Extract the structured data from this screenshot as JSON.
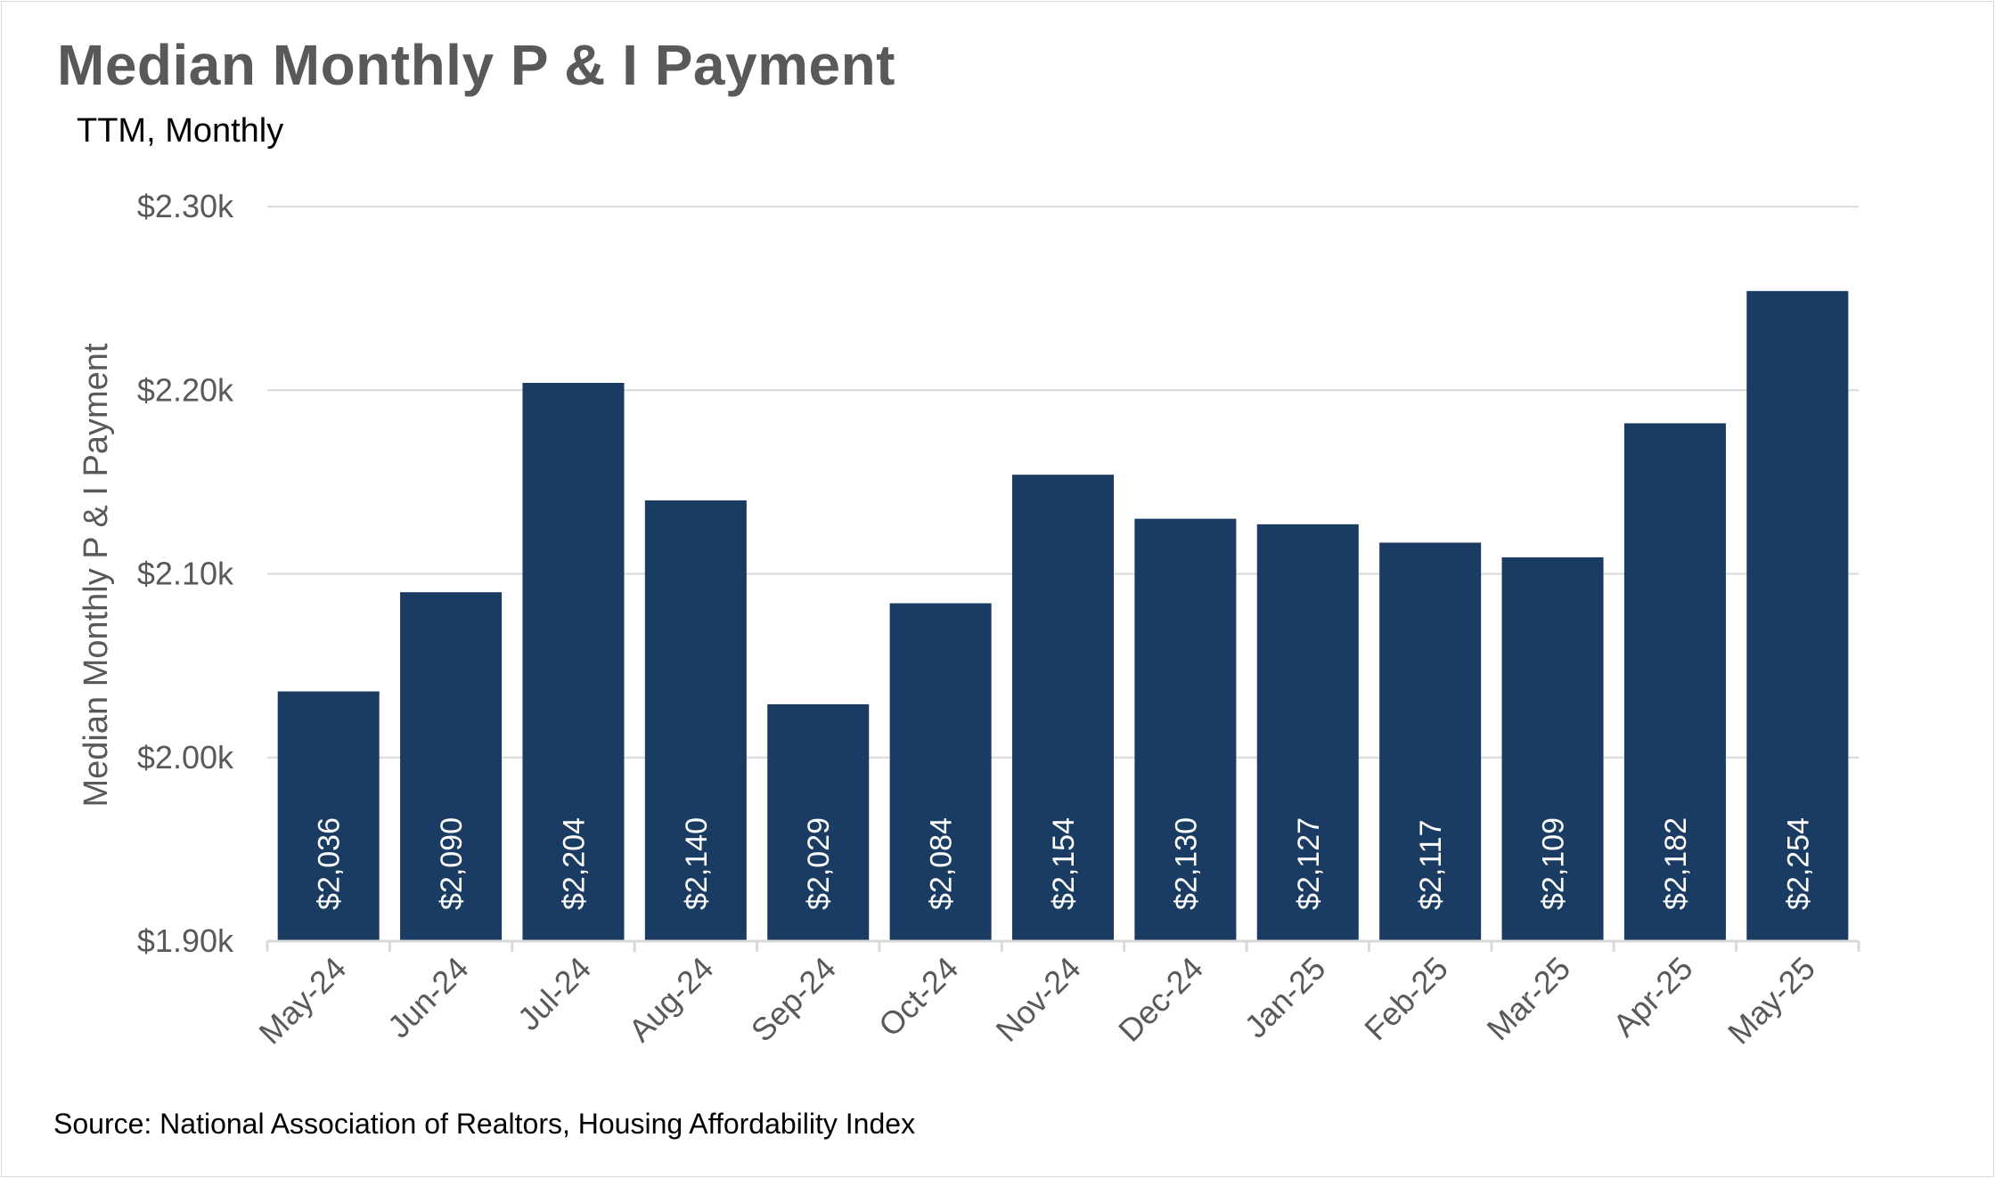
{
  "chart_data": {
    "type": "bar",
    "title": "Median Monthly P & I Payment",
    "subtitle": "TTM, Monthly",
    "ylabel": "Median Monthly P & I Payment",
    "xlabel": "",
    "categories": [
      "May-24",
      "Jun-24",
      "Jul-24",
      "Aug-24",
      "Sep-24",
      "Oct-24",
      "Nov-24",
      "Dec-24",
      "Jan-25",
      "Feb-25",
      "Mar-25",
      "Apr-25",
      "May-25"
    ],
    "values": [
      2036,
      2090,
      2204,
      2140,
      2029,
      2084,
      2154,
      2130,
      2127,
      2117,
      2109,
      2182,
      2254
    ],
    "data_labels": [
      "$2,036",
      "$2,090",
      "$2,204",
      "$2,140",
      "$2,029",
      "$2,084",
      "$2,154",
      "$2,130",
      "$2,127",
      "$2,117",
      "$2,109",
      "$2,182",
      "$2,254"
    ],
    "ylim": [
      1900,
      2300
    ],
    "yticks": [
      1900,
      2000,
      2100,
      2200,
      2300
    ],
    "ytick_labels": [
      "$1.90k",
      "$2.00k",
      "$2.10k",
      "$2.20k",
      "$2.30k"
    ],
    "grid": true,
    "legend": "none",
    "bar_color": "#1a3c63",
    "source": "Source: National Association of Realtors, Housing Affordability Index"
  }
}
